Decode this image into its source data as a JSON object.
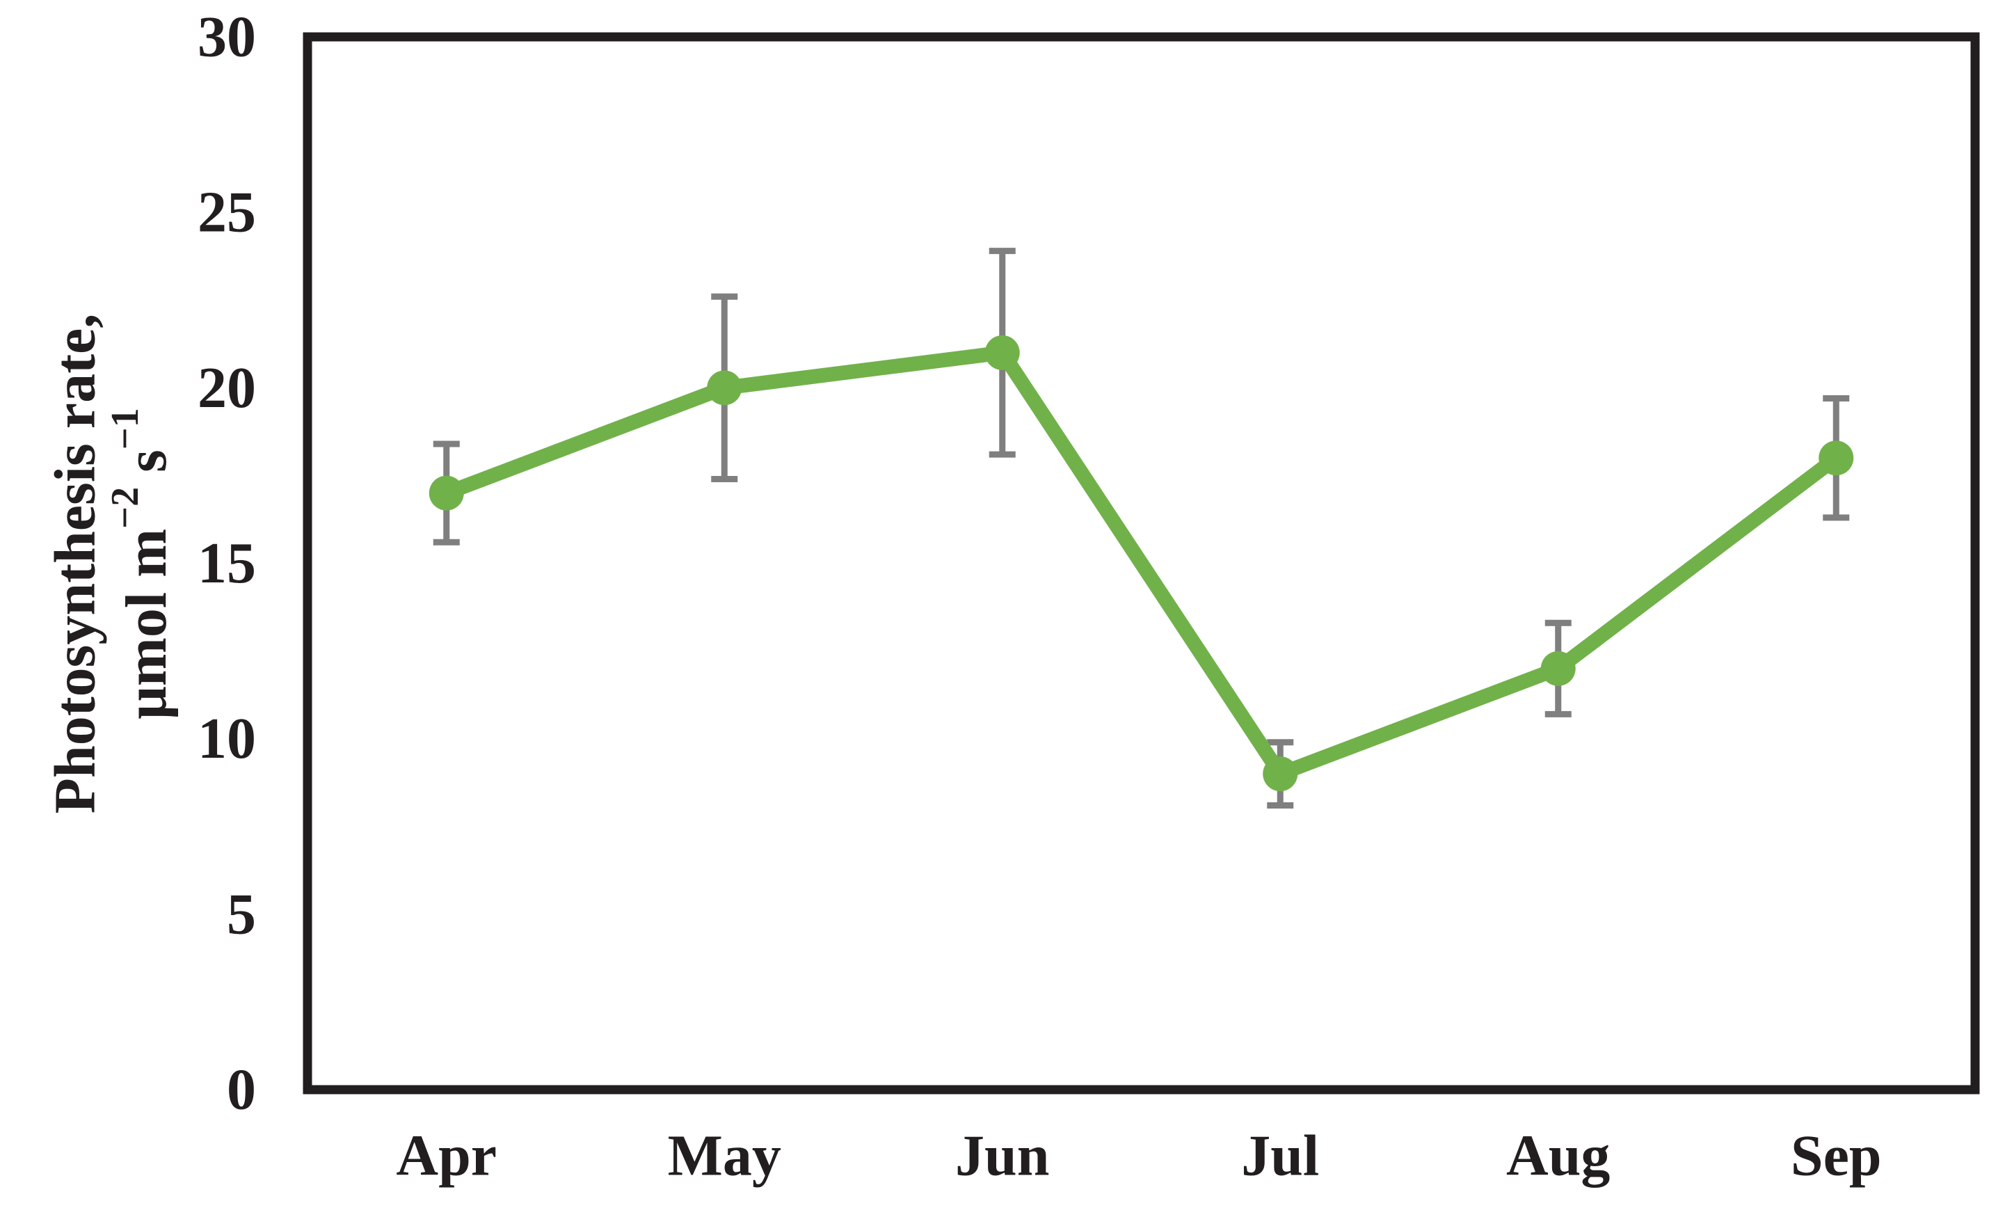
{
  "chart_data": {
    "type": "line",
    "categories": [
      "Apr",
      "May",
      "Jun",
      "Jul",
      "Aug",
      "Sep"
    ],
    "series": [
      {
        "name": "Photosynthesis rate",
        "values": [
          17,
          20,
          21,
          9,
          12,
          18
        ],
        "errors": [
          1.4,
          2.6,
          2.9,
          0.9,
          1.3,
          1.7
        ]
      }
    ],
    "title": "",
    "xlabel": "",
    "ylabel_line1": "Photosynthesis rate,",
    "ylabel_line2_segments": [
      {
        "t": "μmol m"
      },
      {
        "t": "−2",
        "sup": true
      },
      {
        "t": " s"
      },
      {
        "t": "−1",
        "sup": true
      }
    ],
    "ylim": [
      0,
      30
    ],
    "ytick_step": 5,
    "ytick_labels": [
      "0",
      "5",
      "10",
      "15",
      "20",
      "25",
      "30"
    ],
    "grid": false,
    "legend": "none",
    "colors": {
      "line": "#71b14a",
      "marker": "#71b14a",
      "error_bar": "#7f7f7f",
      "frame": "#221e1f",
      "text": "#221e1f"
    }
  }
}
